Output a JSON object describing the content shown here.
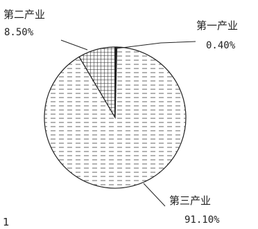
{
  "chart_data": {
    "type": "pie",
    "slices": [
      {
        "label": "第一产业",
        "value": 0.4,
        "value_label": "0.40%",
        "fill": "#222222"
      },
      {
        "label": "第二产业",
        "value": 8.5,
        "value_label": "8.50%",
        "fill": "#222222"
      },
      {
        "label": "第三产业",
        "value": 91.1,
        "value_label": "91.10%",
        "fill": "#555555"
      }
    ],
    "stray_text": "1"
  }
}
